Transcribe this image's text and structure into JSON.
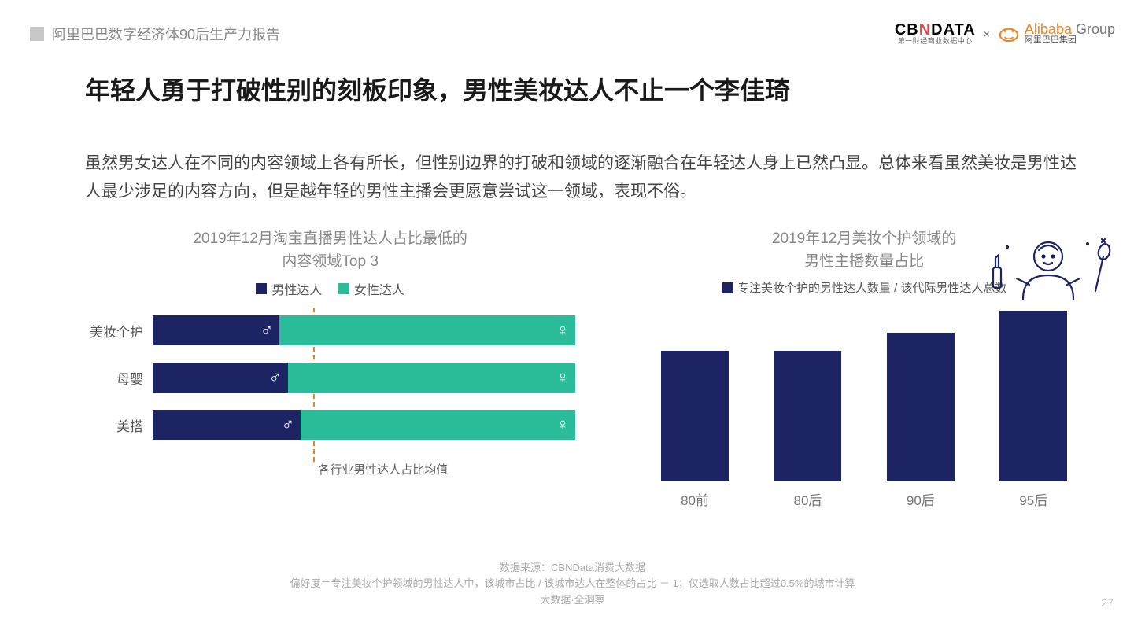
{
  "header": {
    "crumb": "阿里巴巴数字经济体90后生产力报告",
    "cbn_main_pre": "CB",
    "cbn_main_n": "N",
    "cbn_main_post": "DATA",
    "cbn_sub": "第一财经商业数据中心",
    "x": "×",
    "ali_name": "Alibaba",
    "ali_group": " Group",
    "ali_sub": "阿里巴巴集团"
  },
  "title": "年轻人勇于打破性别的刻板印象，男性美妆达人不止一个李佳琦",
  "desc": "虽然男女达人在不同的内容领域上各有所长，但性别边界的打破和领域的逐渐融合在年轻达人身上已然凸显。总体来看虽然美妆是男性达人最少涉足的内容方向，但是越年轻的男性主播会更愿意尝试这一领域，表现不俗。",
  "left_chart": {
    "type": "stacked-horizontal-bar",
    "title_l1": "2019年12月淘宝直播男性达人占比最低的",
    "title_l2": "内容领域Top 3",
    "legend_male": "男性达人",
    "legend_female": "女性达人",
    "color_male": "#1d2463",
    "color_female": "#2bbd9a",
    "rows": [
      {
        "label": "美妆个护",
        "male": 30,
        "female": 70
      },
      {
        "label": "母婴",
        "male": 32,
        "female": 68
      },
      {
        "label": "美搭",
        "male": 35,
        "female": 65
      }
    ],
    "ref_line_pct": 38,
    "ref_label": "各行业男性达人占比均值",
    "ref_color": "#f58220"
  },
  "right_chart": {
    "type": "bar",
    "title_l1": "2019年12月美妆个护领域的",
    "title_l2": "男性主播数量占比",
    "legend": "专注美妆个护的男性达人数量 / 该代际男性达人总数",
    "color": "#1d2463",
    "categories": [
      "80前",
      "80后",
      "90后",
      "95后"
    ],
    "values": [
      72,
      72,
      82,
      94
    ],
    "max": 100
  },
  "footer": {
    "l1": "数据来源：CBNData消费大数据",
    "l2": "偏好度＝专注美妆个护领域的男性达人中，该城市占比 / 该城市达人在整体的占比 － 1；仅选取人数占比超过0.5%的城市计算",
    "l3": "大数据·全洞察"
  },
  "page": "27"
}
